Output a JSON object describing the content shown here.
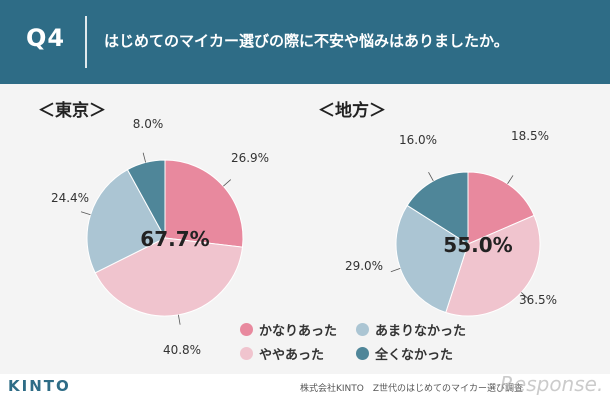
{
  "header": {
    "q_label": "Q4",
    "question": "はじめてのマイカー選びの際に不安や悩みはありましたか。"
  },
  "colors": {
    "header_bg": "#2e6c86",
    "kanari": "#e8899e",
    "yaya": "#f0c4ce",
    "amari": "#abc5d3",
    "mattaku": "#4f8699"
  },
  "chart_data": [
    {
      "type": "pie",
      "title": "＜東京＞",
      "center_label": "67.7%",
      "slices": [
        {
          "name": "かなりあった",
          "value": 26.9,
          "label": "26.9%",
          "color_key": "kanari"
        },
        {
          "name": "ややあった",
          "value": 40.8,
          "label": "40.8%",
          "color_key": "yaya"
        },
        {
          "name": "あまりなかった",
          "value": 24.4,
          "label": "24.4%",
          "color_key": "amari"
        },
        {
          "name": "全くなかった",
          "value": 8.0,
          "label": "8.0%",
          "color_key": "mattaku"
        }
      ]
    },
    {
      "type": "pie",
      "title": "＜地方＞",
      "center_label": "55.0%",
      "slices": [
        {
          "name": "かなりあった",
          "value": 18.5,
          "label": "18.5%",
          "color_key": "kanari"
        },
        {
          "name": "ややあった",
          "value": 36.5,
          "label": "36.5%",
          "color_key": "yaya"
        },
        {
          "name": "あまりなかった",
          "value": 29.0,
          "label": "29.0%",
          "color_key": "amari"
        },
        {
          "name": "全くなかった",
          "value": 16.0,
          "label": "16.0%",
          "color_key": "mattaku"
        }
      ]
    }
  ],
  "legend": [
    {
      "label": "かなりあった",
      "color_key": "kanari"
    },
    {
      "label": "あまりなかった",
      "color_key": "amari"
    },
    {
      "label": "ややあった",
      "color_key": "yaya"
    },
    {
      "label": "全くなかった",
      "color_key": "mattaku"
    }
  ],
  "footer": {
    "logo": "KINTO",
    "source": "株式会社KINTO　Z世代のはじめてのマイカー選び調査"
  },
  "watermark": "Response."
}
